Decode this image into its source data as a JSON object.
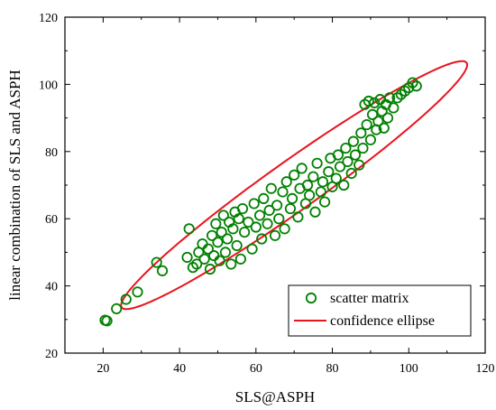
{
  "chart_data": {
    "type": "scatter",
    "xlabel": "SLS@ASPH",
    "ylabel": "linear combination of SLS and ASPH",
    "xlim": [
      10,
      120
    ],
    "ylim": [
      20,
      120
    ],
    "xticks": [
      "20",
      "40",
      "60",
      "80",
      "100",
      "120"
    ],
    "yticks": [
      "20",
      "40",
      "60",
      "80",
      "100",
      "120"
    ],
    "grid": false,
    "legend_position": "bottom-right",
    "colors": {
      "scatter": "#008000",
      "ellipse": "#e8141e",
      "axis": "#000000"
    },
    "series": [
      {
        "name": "scatter matrix",
        "marker": "open-circle",
        "points": [
          [
            20.5,
            29.8
          ],
          [
            21.0,
            29.6
          ],
          [
            23.5,
            33.2
          ],
          [
            26.0,
            36.0
          ],
          [
            29.0,
            38.2
          ],
          [
            34.0,
            47.0
          ],
          [
            35.5,
            44.5
          ],
          [
            42.0,
            48.5
          ],
          [
            42.5,
            57.0
          ],
          [
            43.5,
            45.5
          ],
          [
            44.5,
            46.5
          ],
          [
            45.0,
            50.0
          ],
          [
            46.0,
            52.5
          ],
          [
            46.5,
            48.0
          ],
          [
            47.5,
            51.0
          ],
          [
            48.0,
            45.0
          ],
          [
            48.5,
            55.0
          ],
          [
            49.0,
            49.0
          ],
          [
            49.5,
            58.5
          ],
          [
            50.0,
            53.0
          ],
          [
            50.5,
            47.5
          ],
          [
            51.0,
            56.0
          ],
          [
            51.5,
            61.0
          ],
          [
            52.0,
            50.0
          ],
          [
            52.5,
            54.0
          ],
          [
            53.0,
            59.0
          ],
          [
            53.5,
            46.5
          ],
          [
            54.0,
            57.0
          ],
          [
            54.5,
            62.0
          ],
          [
            55.0,
            52.0
          ],
          [
            55.5,
            60.0
          ],
          [
            56.0,
            48.0
          ],
          [
            56.5,
            63.0
          ],
          [
            57.0,
            56.0
          ],
          [
            58.0,
            59.0
          ],
          [
            59.0,
            51.0
          ],
          [
            59.5,
            64.5
          ],
          [
            60.0,
            57.5
          ],
          [
            61.0,
            61.0
          ],
          [
            61.5,
            54.0
          ],
          [
            62.0,
            66.0
          ],
          [
            63.0,
            58.5
          ],
          [
            63.5,
            62.5
          ],
          [
            64.0,
            69.0
          ],
          [
            65.0,
            55.0
          ],
          [
            65.5,
            64.0
          ],
          [
            66.0,
            60.0
          ],
          [
            67.0,
            68.0
          ],
          [
            67.5,
            57.0
          ],
          [
            68.0,
            71.0
          ],
          [
            69.0,
            63.0
          ],
          [
            69.5,
            66.0
          ],
          [
            70.0,
            73.0
          ],
          [
            71.0,
            60.5
          ],
          [
            71.5,
            69.0
          ],
          [
            72.0,
            75.0
          ],
          [
            73.0,
            64.5
          ],
          [
            73.5,
            70.0
          ],
          [
            74.0,
            67.0
          ],
          [
            75.0,
            72.5
          ],
          [
            75.5,
            62.0
          ],
          [
            76.0,
            76.5
          ],
          [
            77.0,
            68.0
          ],
          [
            77.5,
            71.0
          ],
          [
            78.0,
            65.0
          ],
          [
            79.0,
            74.0
          ],
          [
            79.5,
            78.0
          ],
          [
            80.0,
            69.5
          ],
          [
            81.0,
            72.0
          ],
          [
            81.5,
            79.0
          ],
          [
            82.0,
            75.5
          ],
          [
            83.0,
            70.0
          ],
          [
            83.5,
            81.0
          ],
          [
            84.0,
            77.0
          ],
          [
            85.0,
            73.5
          ],
          [
            85.5,
            83.0
          ],
          [
            86.0,
            79.0
          ],
          [
            87.0,
            76.0
          ],
          [
            87.5,
            85.5
          ],
          [
            88.0,
            81.0
          ],
          [
            88.5,
            94.0
          ],
          [
            89.0,
            88.0
          ],
          [
            89.5,
            95.0
          ],
          [
            90.0,
            83.5
          ],
          [
            90.5,
            91.0
          ],
          [
            91.0,
            94.5
          ],
          [
            91.5,
            86.5
          ],
          [
            92.0,
            89.0
          ],
          [
            92.5,
            95.5
          ],
          [
            93.0,
            92.0
          ],
          [
            93.5,
            87.0
          ],
          [
            94.0,
            94.0
          ],
          [
            94.5,
            90.0
          ],
          [
            95.0,
            96.0
          ],
          [
            96.0,
            93.0
          ],
          [
            97.0,
            96.0
          ],
          [
            98.0,
            97.0
          ],
          [
            99.0,
            98.0
          ],
          [
            100.0,
            99.0
          ],
          [
            101.0,
            100.5
          ],
          [
            102.0,
            99.5
          ]
        ]
      },
      {
        "name": "confidence ellipse",
        "type": "ellipse",
        "center": [
          70,
          70
        ],
        "semi_axes": [
          58,
          7
        ],
        "angle_deg": 39
      }
    ]
  }
}
